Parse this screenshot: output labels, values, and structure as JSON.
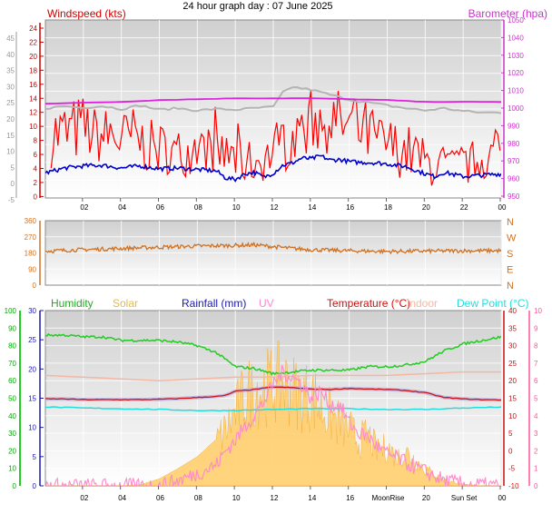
{
  "title": "24 hour graph day : 07 June 2025",
  "colors": {
    "windspeed": "#ff0000",
    "wind_avg": "#0000cc",
    "barometer": "#cc33cc",
    "baro_line": "#dd22dd",
    "baro_grey": "#b4b4b4",
    "direction": "#d07020",
    "humidity": "#22cc22",
    "solar": "#ffcc66",
    "rainfall": "#1a1aaa",
    "uv": "#ff88cc",
    "temperature": "#cc1111",
    "indoor": "#f2b8a4",
    "dewpoint": "#22dddd",
    "humidity_left_axis": "#00aa00",
    "uv_right_axis": "#ff5599"
  },
  "chart_data": [
    {
      "type": "line",
      "title": "Windspeed (kts)",
      "right_title": "Barometer (hpa)",
      "x_ticks": [
        "02",
        "04",
        "06",
        "08",
        "10",
        "12",
        "14",
        "16",
        "18",
        "20",
        "22",
        "00"
      ],
      "outer_ticks": [
        "45",
        "40",
        "35",
        "30",
        "25",
        "20",
        "15",
        "10",
        "5",
        "0",
        "-5"
      ],
      "left_ticks": [
        "24",
        "22",
        "20",
        "18",
        "16",
        "14",
        "12",
        "10",
        "8",
        "6",
        "4",
        "2",
        "0"
      ],
      "right_ticks": [
        "1050",
        "1040",
        "1030",
        "1020",
        "1010",
        "1000",
        "990",
        "980",
        "970",
        "960",
        "950"
      ],
      "ylim_left": [
        0,
        25
      ],
      "ylim_right": [
        950,
        1050
      ],
      "series": [
        {
          "key": "gust",
          "x": [
            0.5,
            1,
            1.5,
            2,
            2.5,
            3,
            3.5,
            4,
            4.5,
            5,
            5.5,
            6,
            6.5,
            7,
            7.5,
            8,
            8.5,
            9,
            9.5,
            10,
            10.5,
            11,
            11.5,
            12,
            12.5,
            13,
            13.5,
            14,
            14.5,
            15,
            15.5,
            16,
            16.5,
            17,
            17.5,
            18,
            18.5,
            19,
            19.5,
            20,
            20.5,
            21,
            21.5,
            22,
            22.5,
            23,
            23.5,
            24
          ],
          "values": [
            9,
            9,
            9.5,
            10,
            9,
            8.5,
            9,
            8,
            8.5,
            8,
            7,
            7,
            6.5,
            6,
            6.5,
            7,
            7,
            6.5,
            6,
            5.5,
            5,
            5,
            5.5,
            6.5,
            8,
            9,
            10,
            11,
            11,
            11,
            10.5,
            10,
            9.5,
            9,
            8,
            7.5,
            7,
            6.5,
            6,
            5,
            4.5,
            4.5,
            4.5,
            5,
            5,
            5.5,
            6,
            6
          ],
          "spread": [
            6,
            6,
            6,
            6,
            5,
            5,
            6,
            5,
            6,
            5,
            5,
            5,
            4,
            5,
            4,
            5,
            4,
            4,
            4,
            4,
            4,
            4,
            4,
            5,
            6,
            6,
            6,
            6,
            6,
            6,
            6,
            6,
            6,
            6,
            5,
            5,
            5,
            5,
            5,
            4,
            4,
            4,
            3,
            4,
            4,
            4,
            4,
            4
          ]
        },
        {
          "key": "wind_avg",
          "x": [
            0,
            1,
            2,
            3,
            4,
            5,
            6,
            7,
            8,
            9,
            9.5,
            10,
            10.5,
            11,
            11.5,
            12,
            12.5,
            13,
            13.5,
            14,
            14.5,
            15,
            15.5,
            16,
            16.5,
            17,
            18,
            19,
            20,
            20.5,
            21,
            22,
            23,
            24
          ],
          "values": [
            3.5,
            4.2,
            4.5,
            4.6,
            4.2,
            4.5,
            4.1,
            4.2,
            4.0,
            3.8,
            2.8,
            2.6,
            3.4,
            3.6,
            2.9,
            3.5,
            4.6,
            4.9,
            5.6,
            5.5,
            5.9,
            5.3,
            5.4,
            5.1,
            5.0,
            5.0,
            4.8,
            4.4,
            3.4,
            3.0,
            3.6,
            3.0,
            3.2,
            3.4
          ]
        },
        {
          "key": "barometer",
          "x": [
            0,
            2,
            4,
            6,
            8,
            10,
            12,
            14,
            16,
            18,
            20,
            22,
            24
          ],
          "values": [
            1003,
            1003.5,
            1004,
            1005,
            1005.5,
            1006,
            1006,
            1006,
            1005.5,
            1005,
            1004,
            1004,
            1004
          ]
        },
        {
          "key": "baro_grey",
          "x": [
            0,
            1,
            2,
            3,
            4,
            5,
            6,
            7,
            8,
            9,
            10,
            11,
            12,
            12.5,
            13,
            14,
            15,
            16,
            17,
            18,
            19,
            20,
            21,
            22,
            23,
            24
          ],
          "values": [
            12.6,
            12.9,
            12.7,
            12.9,
            12.5,
            13.0,
            12.4,
            12.6,
            12.3,
            12.5,
            12.4,
            12.6,
            12.8,
            14.8,
            15.6,
            15.2,
            14.5,
            13.8,
            13.4,
            13.0,
            12.6,
            12.3,
            12.6,
            12.2,
            12.0,
            12.0
          ]
        }
      ]
    },
    {
      "type": "line",
      "left_ticks": [
        "360",
        "270",
        "180",
        "90",
        "0"
      ],
      "right_ticks": [
        "N",
        "W",
        "S",
        "E",
        "N"
      ],
      "ylim": [
        0,
        360
      ],
      "series": [
        {
          "key": "direction",
          "x": [
            0,
            2,
            4,
            6,
            8,
            10,
            11,
            12,
            13,
            14,
            16,
            18,
            20,
            22,
            24
          ],
          "values": [
            190,
            198,
            205,
            212,
            218,
            222,
            225,
            215,
            205,
            198,
            192,
            188,
            190,
            192,
            192
          ]
        }
      ]
    },
    {
      "type": "line",
      "legend": [
        "Humidity",
        "Solar",
        "Rainfall (mm)",
        "UV",
        "Temperature (°C)",
        "Indoor",
        "Dew Point (°C)"
      ],
      "x_ticks": [
        "02",
        "04",
        "06",
        "08",
        "10",
        "12",
        "14",
        "16",
        "MoonRise",
        "20",
        "Sun Set",
        "00"
      ],
      "humidity_ticks": [
        "100",
        "90",
        "80",
        "70",
        "60",
        "50",
        "40",
        "30",
        "20",
        "10",
        "0"
      ],
      "rain_ticks": [
        "30",
        "25",
        "20",
        "15",
        "10",
        "5",
        "0"
      ],
      "temp_ticks": [
        "40",
        "35",
        "30",
        "25",
        "20",
        "15",
        "10",
        "5",
        "0",
        "-5",
        "-10"
      ],
      "uv_ticks": [
        "10",
        "9",
        "8",
        "7",
        "6",
        "5",
        "4",
        "3",
        "2",
        "1",
        "0"
      ],
      "ylim_humidity": [
        0,
        100
      ],
      "ylim_rain": [
        0,
        30
      ],
      "ylim_temp": [
        -10,
        40
      ],
      "ylim_uv": [
        0,
        10
      ],
      "series": [
        {
          "key": "humidity",
          "x": [
            0,
            1,
            2,
            3,
            4,
            5,
            6,
            7,
            8,
            9,
            9.5,
            10,
            11,
            12,
            13,
            14,
            15,
            16,
            17,
            18,
            19,
            20,
            21,
            22,
            23,
            24
          ],
          "values": [
            86,
            86,
            85,
            85,
            83,
            83,
            83,
            82,
            80,
            76,
            72,
            68,
            67,
            64,
            65,
            66,
            66,
            66,
            68,
            68,
            69,
            71,
            77,
            81,
            83,
            85
          ]
        },
        {
          "key": "solar",
          "x": [
            0,
            3,
            4,
            5,
            6,
            7,
            8,
            9,
            9.5,
            10,
            10.5,
            11,
            11.5,
            12,
            12.5,
            13,
            13.5,
            14,
            14.5,
            15,
            15.5,
            16,
            16.5,
            17,
            17.5,
            18,
            18.5,
            19,
            20,
            21,
            22,
            23,
            24
          ],
          "values": [
            0,
            0,
            0,
            0.2,
            1.2,
            3,
            5,
            8,
            10,
            13,
            16,
            17,
            17.5,
            18,
            18.5,
            17,
            16,
            16,
            14,
            12.5,
            11,
            10,
            8,
            9,
            6,
            7,
            5,
            6,
            3,
            1,
            0.3,
            0,
            0
          ]
        },
        {
          "key": "temperature",
          "x": [
            0,
            1,
            2,
            3,
            4,
            5,
            6,
            7,
            8,
            9,
            9.5,
            10,
            11,
            12,
            13,
            14,
            15,
            16,
            17,
            18,
            19,
            20,
            21,
            22,
            23,
            24
          ],
          "values": [
            14.8,
            14.8,
            14.6,
            14.6,
            14.6,
            14.6,
            14.7,
            14.9,
            15.2,
            15.5,
            15.8,
            17.0,
            17.5,
            18.2,
            18.0,
            17.6,
            17.5,
            17.8,
            17.6,
            17.5,
            17.2,
            16.6,
            15.2,
            14.8,
            14.6,
            14.5
          ]
        },
        {
          "key": "uv",
          "x": [
            0,
            6,
            7,
            8,
            9,
            9.5,
            10,
            10.5,
            11,
            11.5,
            12,
            12.5,
            13,
            13.5,
            14,
            14.5,
            15,
            15.5,
            16,
            16.5,
            17,
            17.5,
            18,
            18.5,
            19,
            20,
            21,
            22,
            24
          ],
          "values": [
            0,
            0,
            0.3,
            0.7,
            1.2,
            2,
            2.6,
            3.4,
            4,
            4.8,
            5.8,
            6.5,
            6.2,
            5.8,
            5.0,
            5.4,
            4.6,
            4.6,
            3.6,
            3.0,
            2.8,
            2.2,
            1.8,
            1.6,
            1.3,
            0.8,
            0.3,
            0.1,
            0
          ]
        },
        {
          "key": "indoor",
          "x": [
            0,
            2,
            4,
            6,
            8,
            10,
            12,
            14,
            16,
            18,
            20,
            22,
            24
          ],
          "values": [
            21.5,
            21,
            20.5,
            20,
            20.5,
            21,
            21,
            21.5,
            21.5,
            21.5,
            22,
            22.5,
            22.5
          ]
        },
        {
          "key": "dewpoint",
          "x": [
            0,
            2,
            4,
            6,
            8,
            10,
            12,
            14,
            16,
            18,
            20,
            22,
            24
          ],
          "values": [
            12.5,
            12.2,
            12,
            11.8,
            11.5,
            11.5,
            11.8,
            12,
            12,
            11.8,
            11.8,
            12.2,
            12.5
          ]
        }
      ]
    }
  ]
}
